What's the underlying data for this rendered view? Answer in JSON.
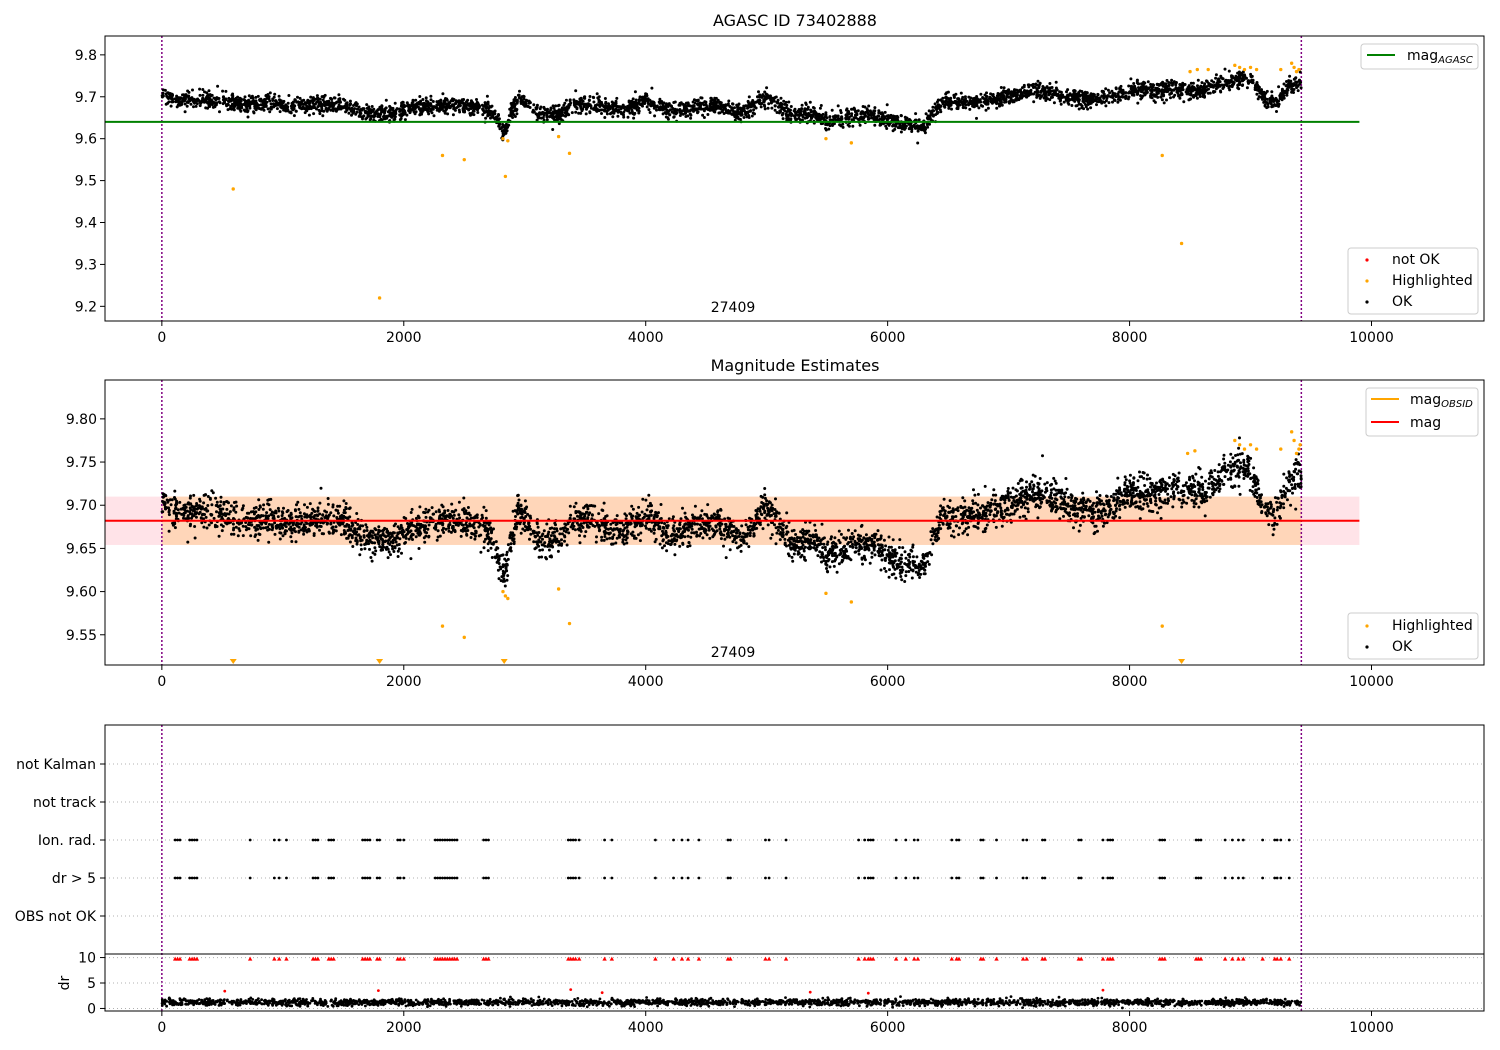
{
  "chart_data": [
    {
      "type": "scatter",
      "title": "AGASC ID 73402888",
      "xlim": [
        -470,
        10930
      ],
      "ylim": [
        9.165,
        9.845
      ],
      "x_ticks": [
        "0",
        "2000",
        "4000",
        "6000",
        "8000",
        "10000"
      ],
      "x_tick_values": [
        0,
        2000,
        4000,
        6000,
        8000,
        10000
      ],
      "y_ticks": [
        "9.2",
        "9.3",
        "9.4",
        "9.5",
        "9.6",
        "9.7",
        "9.8"
      ],
      "y_tick_values": [
        9.2,
        9.3,
        9.4,
        9.5,
        9.6,
        9.7,
        9.8
      ],
      "obsid_label": "27409",
      "obsid_label_x": 4700,
      "obs_boundaries": [
        0,
        9420
      ],
      "reference_line": {
        "name": "mag_AGASC",
        "label_main": "mag",
        "label_sub": "AGASC",
        "y": 9.64,
        "x_range": [
          -470,
          9900
        ],
        "color": "#008000"
      },
      "legend_top": [
        {
          "label_main": "mag",
          "label_sub": "AGASC",
          "color": "#008000"
        }
      ],
      "legend_bottom": [
        {
          "label": "not OK",
          "color": "#ff0000"
        },
        {
          "label": "Highlighted",
          "color": "#ffa500"
        },
        {
          "label": "OK",
          "color": "#000000"
        }
      ],
      "ok_trend": [
        [
          0,
          9.7
        ],
        [
          150,
          9.69
        ],
        [
          300,
          9.695
        ],
        [
          500,
          9.69
        ],
        [
          700,
          9.68
        ],
        [
          900,
          9.685
        ],
        [
          1100,
          9.675
        ],
        [
          1300,
          9.685
        ],
        [
          1500,
          9.68
        ],
        [
          1700,
          9.66
        ],
        [
          1900,
          9.66
        ],
        [
          2100,
          9.675
        ],
        [
          2300,
          9.68
        ],
        [
          2500,
          9.68
        ],
        [
          2700,
          9.67
        ],
        [
          2830,
          9.62
        ],
        [
          2950,
          9.7
        ],
        [
          3100,
          9.66
        ],
        [
          3300,
          9.66
        ],
        [
          3400,
          9.685
        ],
        [
          3600,
          9.68
        ],
        [
          3800,
          9.67
        ],
        [
          4000,
          9.69
        ],
        [
          4200,
          9.665
        ],
        [
          4400,
          9.675
        ],
        [
          4600,
          9.68
        ],
        [
          4800,
          9.66
        ],
        [
          5000,
          9.7
        ],
        [
          5200,
          9.655
        ],
        [
          5400,
          9.66
        ],
        [
          5500,
          9.64
        ],
        [
          5700,
          9.655
        ],
        [
          5900,
          9.655
        ],
        [
          6100,
          9.635
        ],
        [
          6300,
          9.63
        ],
        [
          6450,
          9.69
        ],
        [
          6600,
          9.685
        ],
        [
          6800,
          9.69
        ],
        [
          7000,
          9.7
        ],
        [
          7200,
          9.715
        ],
        [
          7400,
          9.705
        ],
        [
          7600,
          9.695
        ],
        [
          7800,
          9.695
        ],
        [
          8000,
          9.715
        ],
        [
          8200,
          9.715
        ],
        [
          8400,
          9.72
        ],
        [
          8600,
          9.715
        ],
        [
          8800,
          9.735
        ],
        [
          8900,
          9.745
        ],
        [
          9000,
          9.74
        ],
        [
          9100,
          9.7
        ],
        [
          9200,
          9.685
        ],
        [
          9300,
          9.72
        ],
        [
          9420,
          9.74
        ]
      ],
      "ok_noise": 0.022,
      "ok_count": 4000,
      "highlighted_points": [
        [
          590,
          9.48
        ],
        [
          1800,
          9.22
        ],
        [
          2320,
          9.56
        ],
        [
          2500,
          9.55
        ],
        [
          2820,
          9.6
        ],
        [
          2840,
          9.51
        ],
        [
          2860,
          9.595
        ],
        [
          3370,
          9.565
        ],
        [
          3280,
          9.605
        ],
        [
          5490,
          9.6
        ],
        [
          5700,
          9.59
        ],
        [
          8270,
          9.56
        ],
        [
          8430,
          9.35
        ],
        [
          8500,
          9.76
        ],
        [
          8560,
          9.765
        ],
        [
          8650,
          9.765
        ],
        [
          8870,
          9.775
        ],
        [
          8910,
          9.77
        ],
        [
          8950,
          9.765
        ],
        [
          9000,
          9.77
        ],
        [
          9050,
          9.765
        ],
        [
          9250,
          9.765
        ],
        [
          9340,
          9.78
        ],
        [
          9360,
          9.77
        ],
        [
          9400,
          9.765
        ],
        [
          9380,
          9.76
        ]
      ]
    },
    {
      "type": "scatter",
      "title": "Magnitude Estimates",
      "xlim": [
        -470,
        10930
      ],
      "ylim": [
        9.515,
        9.845
      ],
      "x_ticks": [
        "0",
        "2000",
        "4000",
        "6000",
        "8000",
        "10000"
      ],
      "x_tick_values": [
        0,
        2000,
        4000,
        6000,
        8000,
        10000
      ],
      "y_ticks": [
        "9.55",
        "9.60",
        "9.65",
        "9.70",
        "9.75",
        "9.80"
      ],
      "y_tick_values": [
        9.55,
        9.6,
        9.65,
        9.7,
        9.75,
        9.8
      ],
      "obsid_label": "27409",
      "obsid_label_x": 4700,
      "obs_boundaries": [
        0,
        9420
      ],
      "mag_line": {
        "y": 9.682,
        "x_range": [
          -470,
          9900
        ],
        "color": "#ff0000"
      },
      "mag_band": {
        "y_range": [
          9.654,
          9.71
        ],
        "x_range": [
          -470,
          9900
        ],
        "color": "#ffc0cb"
      },
      "mag_obsid_band": {
        "y_range": [
          9.654,
          9.71
        ],
        "x_range": [
          0,
          9420
        ],
        "color": "#ffa500"
      },
      "legend_top": [
        {
          "label_main": "mag",
          "label_sub": "OBSID",
          "color": "#ffa500"
        },
        {
          "label_main": "mag",
          "label_sub": "",
          "color": "#ff0000"
        }
      ],
      "legend_bottom": [
        {
          "label": "Highlighted",
          "color": "#ffa500"
        },
        {
          "label": "OK",
          "color": "#000000"
        }
      ],
      "below_range_markers": [
        590,
        1800,
        2830,
        8430
      ],
      "highlighted_points": [
        [
          2320,
          9.56
        ],
        [
          2500,
          9.547
        ],
        [
          2820,
          9.6
        ],
        [
          2840,
          9.595
        ],
        [
          2860,
          9.592
        ],
        [
          3370,
          9.563
        ],
        [
          3280,
          9.603
        ],
        [
          5490,
          9.598
        ],
        [
          5700,
          9.588
        ],
        [
          8270,
          9.56
        ],
        [
          8480,
          9.76
        ],
        [
          8540,
          9.763
        ],
        [
          8870,
          9.775
        ],
        [
          8910,
          9.77
        ],
        [
          8950,
          9.765
        ],
        [
          9000,
          9.77
        ],
        [
          9050,
          9.765
        ],
        [
          9250,
          9.765
        ],
        [
          9340,
          9.785
        ],
        [
          9360,
          9.775
        ],
        [
          9400,
          9.765
        ],
        [
          9380,
          9.76
        ],
        [
          9410,
          9.77
        ]
      ]
    },
    {
      "type": "scatter",
      "title": "",
      "xlim": [
        -470,
        10930
      ],
      "x_ticks": [
        "0",
        "2000",
        "4000",
        "6000",
        "8000",
        "10000"
      ],
      "x_tick_values": [
        0,
        2000,
        4000,
        6000,
        8000,
        10000
      ],
      "obs_boundaries": [
        0,
        9420
      ],
      "flag_rows": [
        "not Kalman",
        "not track",
        "Ion. rad.",
        "dr > 5",
        "OBS not OK"
      ],
      "flag_events_x": [
        110,
        130,
        150,
        230,
        250,
        270,
        290,
        730,
        930,
        970,
        1030,
        1250,
        1270,
        1290,
        1380,
        1400,
        1420,
        1660,
        1680,
        1700,
        1720,
        1780,
        1800,
        1950,
        1970,
        2000,
        2260,
        2280,
        2300,
        2320,
        2340,
        2360,
        2380,
        2400,
        2420,
        2440,
        2660,
        2680,
        2700,
        3360,
        3380,
        3400,
        3420,
        3450,
        3660,
        3720,
        4080,
        4230,
        4300,
        4350,
        4440,
        4680,
        4700,
        4990,
        5020,
        5160,
        5760,
        5810,
        5840,
        5860,
        5880,
        6070,
        6150,
        6220,
        6250,
        6530,
        6570,
        6590,
        6770,
        6790,
        6900,
        7120,
        7150,
        7280,
        7300,
        7580,
        7600,
        7780,
        7820,
        7840,
        7860,
        8250,
        8270,
        8290,
        8550,
        8570,
        8590,
        8790,
        8850,
        8900,
        8940,
        9100,
        9200,
        9220,
        9250,
        9320
      ],
      "dr_ylabel": "dr",
      "dr_ylim": [
        -0.5,
        10.7
      ],
      "dr_y_ticks": [
        "0",
        "5",
        "10"
      ],
      "dr_y_tick_values": [
        0,
        5,
        10
      ],
      "dr_baseline": 1.2,
      "dr_noise": 0.55,
      "dr_count": 2500,
      "dr_spikes": [
        [
          520,
          3.4
        ],
        [
          1790,
          3.5
        ],
        [
          3380,
          3.7
        ],
        [
          3640,
          3.1
        ],
        [
          5360,
          3.2
        ],
        [
          5840,
          3.0
        ],
        [
          7780,
          3.6
        ]
      ]
    }
  ]
}
